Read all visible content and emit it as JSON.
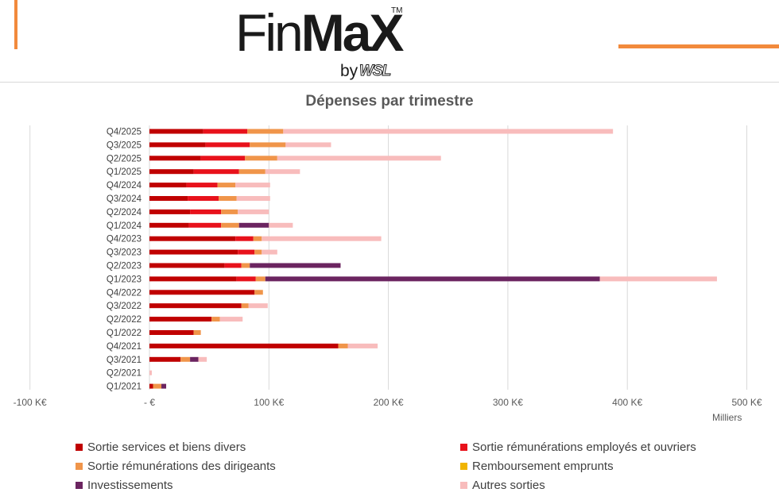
{
  "header": {
    "brand": "FinMaX",
    "brand_part1": "Fin",
    "brand_part2": "MaX",
    "trademark": "TM",
    "byline_by": "by",
    "byline_brand": "WSL",
    "accent_color": "#f28a3c"
  },
  "chart_data": {
    "type": "bar",
    "orientation": "horizontal",
    "stacked": true,
    "title": "Dépenses par trimestre",
    "units_label": "Milliers",
    "xlim": [
      -100,
      500
    ],
    "xticks": [
      -100,
      0,
      100,
      200,
      300,
      400,
      500
    ],
    "xtick_labels": [
      "-100 K€",
      "-  €",
      "100 K€",
      "200 K€",
      "300 K€",
      "400 K€",
      "500 K€"
    ],
    "grid": true,
    "legend_position": "bottom",
    "categories": [
      "Q4/2025",
      "Q3/2025",
      "Q2/2025",
      "Q1/2025",
      "Q4/2024",
      "Q3/2024",
      "Q2/2024",
      "Q1/2024",
      "Q4/2023",
      "Q3/2023",
      "Q2/2023",
      "Q1/2023",
      "Q4/2022",
      "Q3/2022",
      "Q2/2022",
      "Q1/2022",
      "Q4/2021",
      "Q3/2021",
      "Q2/2021",
      "Q1/2021"
    ],
    "series": [
      {
        "name": "Sortie services et biens divers",
        "color": "#c00000",
        "values": [
          45,
          47,
          43,
          37,
          31,
          32,
          34,
          33,
          72,
          74,
          63,
          73,
          88,
          77,
          52,
          37,
          158,
          26,
          0,
          3
        ]
      },
      {
        "name": "Sortie rémunérations employés et ouvriers",
        "color": "#e8111b",
        "values": [
          37,
          37,
          37,
          38,
          26,
          26,
          26,
          27,
          15,
          14,
          14,
          16,
          0,
          0,
          0,
          0,
          0,
          0,
          0,
          0
        ]
      },
      {
        "name": "Sortie rémunérations des dirigeants",
        "color": "#f0954a",
        "values": [
          30,
          30,
          27,
          22,
          15,
          15,
          14,
          15,
          7,
          6,
          7,
          8,
          7,
          6,
          7,
          6,
          8,
          8,
          0,
          7
        ]
      },
      {
        "name": "Remboursement emprunts",
        "color": "#f0b400",
        "values": [
          0,
          0,
          0,
          0,
          0,
          0,
          0,
          0,
          0,
          0,
          0,
          0,
          0,
          0,
          0,
          0,
          0,
          0,
          0,
          0
        ]
      },
      {
        "name": "Investissements",
        "color": "#6b2460",
        "values": [
          0,
          0,
          0,
          0,
          0,
          0,
          0,
          25,
          0,
          0,
          76,
          280,
          0,
          0,
          0,
          0,
          0,
          7,
          0,
          4
        ]
      },
      {
        "name": "Autres sorties",
        "color": "#f8bcbc",
        "values": [
          276,
          38,
          137,
          29,
          29,
          28,
          26,
          20,
          100,
          13,
          0,
          98,
          0,
          16,
          19,
          0,
          25,
          7,
          2,
          0
        ]
      }
    ]
  }
}
